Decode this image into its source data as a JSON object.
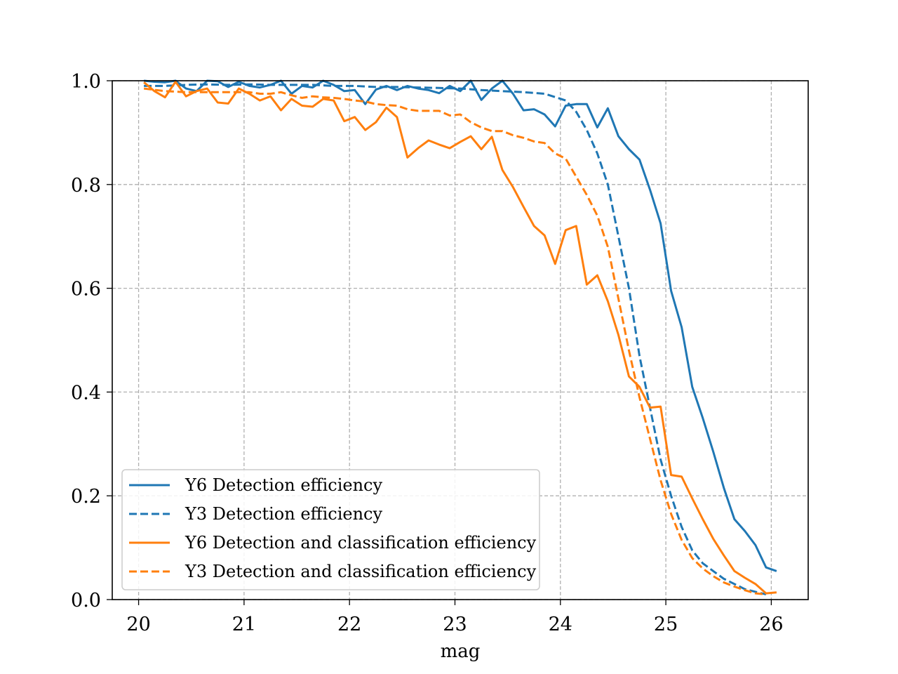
{
  "chart_data": {
    "type": "line",
    "title": "",
    "xlabel": "mag",
    "ylabel": "",
    "xlim": [
      19.75,
      26.35
    ],
    "ylim": [
      0.0,
      1.0
    ],
    "xticks": [
      20,
      21,
      22,
      23,
      24,
      25,
      26
    ],
    "xtick_labels": [
      "20",
      "21",
      "22",
      "23",
      "24",
      "25",
      "26"
    ],
    "yticks": [
      0.0,
      0.2,
      0.4,
      0.6,
      0.8,
      1.0
    ],
    "ytick_labels": [
      "0.0",
      "0.2",
      "0.4",
      "0.6",
      "0.8",
      "1.0"
    ],
    "grid": true,
    "legend_position": "lower-left",
    "series": [
      {
        "name": "Y6 Detection efficiency",
        "color": "#1f77b4",
        "linestyle": "solid",
        "x": [
          20.05,
          20.15,
          20.25,
          20.35,
          20.45,
          20.55,
          20.65,
          20.75,
          20.85,
          20.95,
          21.05,
          21.15,
          21.25,
          21.35,
          21.45,
          21.55,
          21.65,
          21.75,
          21.85,
          21.95,
          22.05,
          22.15,
          22.25,
          22.35,
          22.45,
          22.55,
          22.65,
          22.75,
          22.85,
          22.95,
          23.05,
          23.15,
          23.25,
          23.35,
          23.45,
          23.55,
          23.65,
          23.75,
          23.85,
          23.95,
          24.05,
          24.15,
          24.25,
          24.35,
          24.45,
          24.55,
          24.65,
          24.75,
          24.85,
          24.95,
          25.05,
          25.15,
          25.25,
          25.35,
          25.45,
          25.55,
          25.65,
          25.75,
          25.85,
          25.95,
          26.05
        ],
        "y": [
          1.0,
          0.998,
          0.997,
          1.0,
          0.985,
          0.98,
          1.0,
          0.999,
          0.988,
          0.998,
          0.99,
          0.987,
          0.992,
          1.0,
          0.975,
          0.99,
          0.987,
          1.0,
          0.992,
          0.98,
          0.982,
          0.955,
          0.983,
          0.99,
          0.982,
          0.99,
          0.985,
          0.982,
          0.976,
          0.99,
          0.98,
          1.0,
          0.963,
          0.985,
          1.0,
          0.975,
          0.943,
          0.945,
          0.935,
          0.912,
          0.952,
          0.955,
          0.955,
          0.91,
          0.947,
          0.893,
          0.868,
          0.848,
          0.79,
          0.725,
          0.595,
          0.525,
          0.41,
          0.35,
          0.285,
          0.215,
          0.155,
          0.132,
          0.105,
          0.062,
          0.055
        ]
      },
      {
        "name": "Y3 Detection efficiency",
        "color": "#1f77b4",
        "linestyle": "dashed",
        "x": [
          20.05,
          20.25,
          20.45,
          20.65,
          20.85,
          21.05,
          21.25,
          21.45,
          21.65,
          21.85,
          22.05,
          22.25,
          22.45,
          22.65,
          22.85,
          23.05,
          23.25,
          23.45,
          23.65,
          23.85,
          24.05,
          24.15,
          24.25,
          24.35,
          24.45,
          24.55,
          24.65,
          24.75,
          24.85,
          24.95,
          25.05,
          25.15,
          25.25,
          25.35,
          25.45,
          25.55,
          25.65,
          25.75,
          25.85,
          25.95
        ],
        "y": [
          0.99,
          0.99,
          0.992,
          0.993,
          0.992,
          0.993,
          0.992,
          0.992,
          0.992,
          0.99,
          0.99,
          0.988,
          0.988,
          0.987,
          0.986,
          0.985,
          0.982,
          0.98,
          0.978,
          0.975,
          0.962,
          0.94,
          0.905,
          0.86,
          0.8,
          0.7,
          0.6,
          0.47,
          0.37,
          0.27,
          0.2,
          0.14,
          0.095,
          0.07,
          0.055,
          0.04,
          0.03,
          0.02,
          0.015,
          0.01
        ]
      },
      {
        "name": "Y6 Detection and classification efficiency",
        "color": "#ff7f0e",
        "linestyle": "solid",
        "x": [
          20.05,
          20.15,
          20.25,
          20.35,
          20.45,
          20.55,
          20.65,
          20.75,
          20.85,
          20.95,
          21.05,
          21.15,
          21.25,
          21.35,
          21.45,
          21.55,
          21.65,
          21.75,
          21.85,
          21.95,
          22.05,
          22.15,
          22.25,
          22.35,
          22.45,
          22.55,
          22.65,
          22.75,
          22.85,
          22.95,
          23.05,
          23.15,
          23.25,
          23.35,
          23.45,
          23.55,
          23.65,
          23.75,
          23.85,
          23.95,
          24.05,
          24.15,
          24.25,
          24.35,
          24.45,
          24.55,
          24.65,
          24.75,
          24.85,
          24.95,
          25.05,
          25.15,
          25.25,
          25.35,
          25.45,
          25.55,
          25.65,
          25.75,
          25.85,
          25.95,
          26.05
        ],
        "y": [
          0.997,
          0.98,
          0.968,
          0.998,
          0.97,
          0.98,
          0.985,
          0.958,
          0.956,
          0.985,
          0.975,
          0.962,
          0.97,
          0.943,
          0.965,
          0.952,
          0.95,
          0.965,
          0.962,
          0.922,
          0.93,
          0.905,
          0.92,
          0.948,
          0.93,
          0.852,
          0.87,
          0.885,
          0.877,
          0.87,
          0.882,
          0.893,
          0.868,
          0.892,
          0.828,
          0.795,
          0.757,
          0.72,
          0.702,
          0.647,
          0.712,
          0.72,
          0.607,
          0.625,
          0.575,
          0.51,
          0.43,
          0.41,
          0.37,
          0.372,
          0.24,
          0.237,
          0.195,
          0.155,
          0.117,
          0.085,
          0.055,
          0.042,
          0.03,
          0.012,
          0.014
        ]
      },
      {
        "name": "Y3 Detection and classification efficiency",
        "color": "#ff7f0e",
        "linestyle": "dashed",
        "x": [
          20.05,
          20.25,
          20.45,
          20.65,
          20.85,
          21.05,
          21.15,
          21.25,
          21.35,
          21.45,
          21.55,
          21.65,
          21.75,
          21.85,
          21.95,
          22.05,
          22.15,
          22.25,
          22.35,
          22.45,
          22.55,
          22.65,
          22.75,
          22.85,
          22.95,
          23.05,
          23.15,
          23.25,
          23.35,
          23.45,
          23.55,
          23.65,
          23.75,
          23.85,
          23.95,
          24.05,
          24.15,
          24.25,
          24.35,
          24.45,
          24.55,
          24.65,
          24.75,
          24.85,
          24.95,
          25.05,
          25.15,
          25.25,
          25.35,
          25.45,
          25.55,
          25.65,
          25.75,
          25.85,
          25.95
        ],
        "y": [
          0.985,
          0.98,
          0.978,
          0.978,
          0.978,
          0.978,
          0.975,
          0.975,
          0.978,
          0.972,
          0.967,
          0.97,
          0.968,
          0.967,
          0.965,
          0.962,
          0.96,
          0.955,
          0.953,
          0.952,
          0.945,
          0.942,
          0.942,
          0.942,
          0.933,
          0.935,
          0.92,
          0.91,
          0.903,
          0.903,
          0.895,
          0.89,
          0.883,
          0.88,
          0.86,
          0.85,
          0.815,
          0.78,
          0.74,
          0.68,
          0.58,
          0.48,
          0.39,
          0.31,
          0.23,
          0.165,
          0.115,
          0.08,
          0.06,
          0.045,
          0.033,
          0.025,
          0.018,
          0.012,
          0.01
        ]
      }
    ]
  }
}
